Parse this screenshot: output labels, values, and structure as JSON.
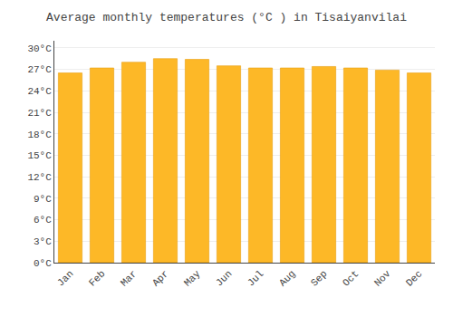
{
  "chart_data": {
    "type": "bar",
    "title": "Average monthly temperatures (°C ) in Tisaiyanvilai",
    "categories": [
      "Jan",
      "Feb",
      "Mar",
      "Apr",
      "May",
      "Jun",
      "Jul",
      "Aug",
      "Sep",
      "Oct",
      "Nov",
      "Dec"
    ],
    "values": [
      26.5,
      27.2,
      28.0,
      28.5,
      28.4,
      27.5,
      27.2,
      27.2,
      27.4,
      27.2,
      26.9,
      26.5
    ],
    "color": "#FDB827",
    "ylim": [
      0,
      31
    ],
    "yticks": [
      {
        "value": 0,
        "label": "0°C"
      },
      {
        "value": 3,
        "label": "3°C"
      },
      {
        "value": 6,
        "label": "6°C"
      },
      {
        "value": 9,
        "label": "9°C"
      },
      {
        "value": 12,
        "label": "12°C"
      },
      {
        "value": 15,
        "label": "15°C"
      },
      {
        "value": 18,
        "label": "18°C"
      },
      {
        "value": 21,
        "label": "21°C"
      },
      {
        "value": 24,
        "label": "24°C"
      },
      {
        "value": 27,
        "label": "27°C"
      },
      {
        "value": 30,
        "label": "30°C"
      }
    ],
    "grid": true
  }
}
